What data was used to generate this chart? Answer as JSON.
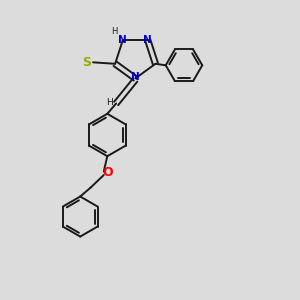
{
  "bg_color": "#dcdcdc",
  "bond_color": "#1a1a1a",
  "N_color": "#0000cd",
  "S_color": "#9aaa00",
  "O_color": "#ff0000",
  "figsize": [
    3.0,
    3.0
  ],
  "dpi": 100,
  "xlim": [
    0,
    10
  ],
  "ylim": [
    0,
    10
  ]
}
